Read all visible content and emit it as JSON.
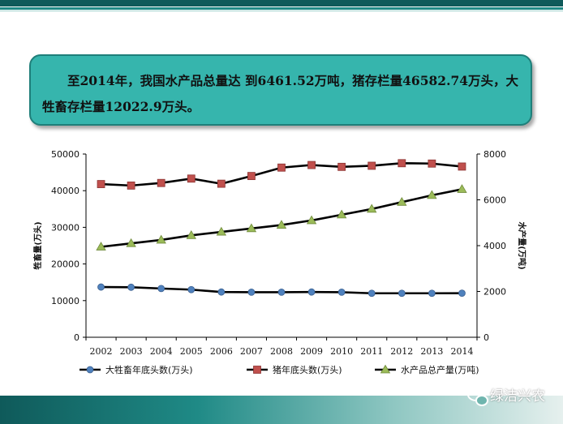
{
  "header": {
    "text": "至2014年，我国水产品总量达 到6461.52万吨，猪存栏量46582.74万头，大牲畜存栏量12022.9万头。"
  },
  "watermark": {
    "text": "绿洁兴农",
    "icon": "wechat-icon"
  },
  "colors": {
    "header_band": "#0f5a5a",
    "callout_bg": "#36b5ad",
    "livestock_marker": "#4f81bd",
    "pig_marker": "#c0504d",
    "aquatic_marker": "#9bbb59",
    "line": "#000000"
  },
  "chart_data": {
    "type": "line",
    "x": [
      "2002",
      "2003",
      "2004",
      "2005",
      "2006",
      "2007",
      "2008",
      "2009",
      "2010",
      "2011",
      "2012",
      "2013",
      "2014"
    ],
    "y_left": {
      "label": "牲畜量(万头)",
      "range": [
        0,
        50000
      ],
      "ticks": [
        "0",
        "10000",
        "20000",
        "30000",
        "40000",
        "50000"
      ]
    },
    "y_right": {
      "label": "水产量(万吨)",
      "range": [
        0,
        8000
      ],
      "ticks": [
        "0",
        "2000",
        "4000",
        "6000",
        "8000"
      ]
    },
    "series": [
      {
        "name": "大牲畜年底头数(万头)",
        "axis": "left",
        "marker": "circle",
        "values": [
          13700,
          13650,
          13300,
          13000,
          12350,
          12300,
          12300,
          12350,
          12300,
          12000,
          12000,
          12000,
          12022.9
        ]
      },
      {
        "name": "猪年底头数(万头)",
        "axis": "left",
        "marker": "square",
        "values": [
          41800,
          41400,
          42100,
          43300,
          41900,
          44000,
          46300,
          47000,
          46500,
          46800,
          47500,
          47400,
          46582.74
        ]
      },
      {
        "name": "水产品总产量(万吨)",
        "axis": "right",
        "marker": "triangle",
        "values": [
          3950,
          4100,
          4250,
          4450,
          4600,
          4750,
          4900,
          5100,
          5350,
          5600,
          5900,
          6200,
          6461.52
        ]
      }
    ],
    "legend_position": "bottom",
    "grid": false
  }
}
